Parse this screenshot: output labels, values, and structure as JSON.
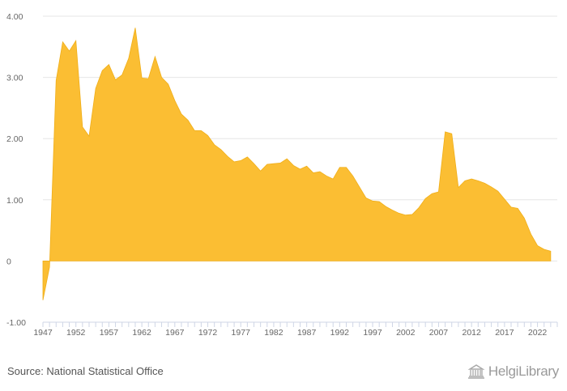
{
  "colors": {
    "area": "#FBBE33",
    "grid": "#e6e6e6",
    "axis": "#cfd6e6",
    "tick_text": "#666666"
  },
  "chart_data": {
    "type": "area",
    "x": [
      1947,
      1948,
      1949,
      1950,
      1951,
      1952,
      1953,
      1954,
      1955,
      1956,
      1957,
      1958,
      1959,
      1960,
      1961,
      1962,
      1963,
      1964,
      1965,
      1966,
      1967,
      1968,
      1969,
      1970,
      1971,
      1972,
      1973,
      1974,
      1975,
      1976,
      1977,
      1978,
      1979,
      1980,
      1981,
      1982,
      1983,
      1984,
      1985,
      1986,
      1987,
      1988,
      1989,
      1990,
      1991,
      1992,
      1993,
      1994,
      1995,
      1996,
      1997,
      1998,
      1999,
      2000,
      2001,
      2002,
      2003,
      2004,
      2005,
      2006,
      2007,
      2008,
      2009,
      2010,
      2011,
      2012,
      2013,
      2014,
      2015,
      2016,
      2017,
      2018,
      2019,
      2020,
      2021,
      2022,
      2023,
      2024
    ],
    "values": [
      -0.64,
      -0.1,
      2.95,
      3.58,
      3.43,
      3.6,
      2.19,
      2.04,
      2.82,
      3.11,
      3.21,
      2.96,
      3.04,
      3.31,
      3.81,
      2.99,
      2.98,
      3.34,
      3.0,
      2.89,
      2.62,
      2.4,
      2.3,
      2.13,
      2.13,
      2.05,
      1.9,
      1.82,
      1.71,
      1.62,
      1.64,
      1.7,
      1.59,
      1.47,
      1.58,
      1.59,
      1.6,
      1.67,
      1.56,
      1.5,
      1.55,
      1.44,
      1.46,
      1.39,
      1.34,
      1.53,
      1.53,
      1.39,
      1.21,
      1.03,
      0.98,
      0.97,
      0.89,
      0.83,
      0.78,
      0.75,
      0.76,
      0.87,
      1.02,
      1.1,
      1.13,
      2.11,
      2.08,
      1.2,
      1.31,
      1.34,
      1.31,
      1.27,
      1.21,
      1.14,
      1.01,
      0.88,
      0.86,
      0.7,
      0.44,
      0.25,
      0.19,
      0.16
    ],
    "ylim": [
      -1.0,
      4.0
    ],
    "yticks": [
      -1.0,
      0,
      1.0,
      2.0,
      3.0,
      4.0
    ],
    "ytick_labels": [
      "-1.00",
      "0",
      "1.00",
      "2.00",
      "3.00",
      "4.00"
    ],
    "xticks": [
      1947,
      1952,
      1957,
      1962,
      1967,
      1972,
      1977,
      1982,
      1987,
      1992,
      1997,
      2002,
      2007,
      2012,
      2017,
      2022
    ],
    "xtick_labels": [
      "1947",
      "1952",
      "1957",
      "1962",
      "1967",
      "1972",
      "1977",
      "1982",
      "1987",
      "1992",
      "1997",
      "2002",
      "2007",
      "2012",
      "2017",
      "2022"
    ],
    "grid": true,
    "legend": "none"
  },
  "footer": {
    "source": "Source: National Statistical Office",
    "brand": "HelgiLibrary"
  }
}
